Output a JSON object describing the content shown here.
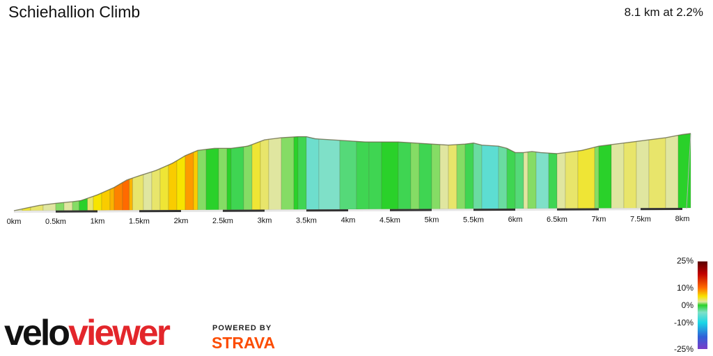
{
  "header": {
    "title": "Schiehallion Climb",
    "summary": "8.1 km at 2.2%"
  },
  "branding": {
    "logo_text": "veloviewer",
    "powered_by": "POWERED BY",
    "strava": "STRAVA",
    "colors": {
      "velo": "#111111",
      "viewer": "#e3262b",
      "strava": "#fc4c02"
    }
  },
  "chart_data": {
    "type": "area",
    "title": "Schiehallion Climb",
    "summary": "8.1 km at 2.2%",
    "x_unit": "km",
    "xlim": [
      0,
      8.1
    ],
    "x_ticks": [
      0,
      0.5,
      1,
      1.5,
      2,
      2.5,
      3,
      3.5,
      4,
      4.5,
      5,
      5.5,
      6,
      6.5,
      7,
      7.5,
      8
    ],
    "x_tick_labels": [
      "0km",
      "0.5km",
      "1km",
      "1.5km",
      "2km",
      "2.5km",
      "3km",
      "3.5km",
      "4km",
      "4.5km",
      "5km",
      "5.5km",
      "6km",
      "6.5km",
      "7km",
      "7.5km",
      "8km"
    ],
    "profile": {
      "x": [
        0,
        0.15,
        0.3,
        0.5,
        0.7,
        0.8,
        1.0,
        1.2,
        1.35,
        1.5,
        1.7,
        1.9,
        2.05,
        2.2,
        2.4,
        2.6,
        2.8,
        3.0,
        3.2,
        3.4,
        3.5,
        3.6,
        3.8,
        4.0,
        4.2,
        4.4,
        4.6,
        4.8,
        5.0,
        5.2,
        5.4,
        5.5,
        5.6,
        5.8,
        5.9,
        6.0,
        6.1,
        6.2,
        6.3,
        6.5,
        6.6,
        6.8,
        7.0,
        7.2,
        7.4,
        7.6,
        7.8,
        8.0,
        8.1
      ],
      "y": [
        0,
        2.5,
        5,
        7,
        8.5,
        9.5,
        15,
        22,
        29,
        33,
        38,
        45,
        52,
        57,
        59,
        59,
        61,
        67,
        69,
        70,
        70,
        68,
        67,
        66,
        65,
        65,
        65,
        64,
        63,
        62,
        63,
        64,
        62,
        61,
        59,
        55,
        55,
        56,
        55,
        54,
        55,
        57,
        61,
        63,
        65,
        67,
        69,
        72,
        73
      ]
    },
    "gradient_segments": [
      {
        "x0": 0.0,
        "x1": 0.1,
        "g": 2
      },
      {
        "x0": 0.1,
        "x1": 0.2,
        "g": 4
      },
      {
        "x0": 0.2,
        "x1": 0.35,
        "g": 3
      },
      {
        "x0": 0.35,
        "x1": 0.5,
        "g": 2
      },
      {
        "x0": 0.5,
        "x1": 0.6,
        "g": 1
      },
      {
        "x0": 0.6,
        "x1": 0.7,
        "g": 2
      },
      {
        "x0": 0.7,
        "x1": 0.78,
        "g": 1
      },
      {
        "x0": 0.78,
        "x1": 0.88,
        "g": 0
      },
      {
        "x0": 0.88,
        "x1": 0.95,
        "g": 3
      },
      {
        "x0": 0.95,
        "x1": 1.05,
        "g": 5
      },
      {
        "x0": 1.05,
        "x1": 1.15,
        "g": 6
      },
      {
        "x0": 1.15,
        "x1": 1.2,
        "g": 7
      },
      {
        "x0": 1.2,
        "x1": 1.3,
        "g": 9
      },
      {
        "x0": 1.3,
        "x1": 1.38,
        "g": 10
      },
      {
        "x0": 1.38,
        "x1": 1.42,
        "g": 7
      },
      {
        "x0": 1.42,
        "x1": 1.55,
        "g": 3
      },
      {
        "x0": 1.55,
        "x1": 1.65,
        "g": 2
      },
      {
        "x0": 1.65,
        "x1": 1.75,
        "g": 3
      },
      {
        "x0": 1.75,
        "x1": 1.85,
        "g": 4
      },
      {
        "x0": 1.85,
        "x1": 1.95,
        "g": 6
      },
      {
        "x0": 1.95,
        "x1": 2.05,
        "g": 5
      },
      {
        "x0": 2.05,
        "x1": 2.15,
        "g": 8
      },
      {
        "x0": 2.15,
        "x1": 2.2,
        "g": 6
      },
      {
        "x0": 2.2,
        "x1": 2.3,
        "g": 1
      },
      {
        "x0": 2.3,
        "x1": 2.45,
        "g": 0
      },
      {
        "x0": 2.45,
        "x1": 2.55,
        "g": 1
      },
      {
        "x0": 2.55,
        "x1": 2.6,
        "g": 0
      },
      {
        "x0": 2.6,
        "x1": 2.75,
        "g": -1
      },
      {
        "x0": 2.75,
        "x1": 2.85,
        "g": 1
      },
      {
        "x0": 2.85,
        "x1": 2.95,
        "g": 4
      },
      {
        "x0": 2.95,
        "x1": 3.05,
        "g": 3
      },
      {
        "x0": 3.05,
        "x1": 3.2,
        "g": 2
      },
      {
        "x0": 3.2,
        "x1": 3.35,
        "g": 1
      },
      {
        "x0": 3.35,
        "x1": 3.4,
        "g": 0
      },
      {
        "x0": 3.4,
        "x1": 3.5,
        "g": -1
      },
      {
        "x0": 3.5,
        "x1": 3.65,
        "g": -5
      },
      {
        "x0": 3.65,
        "x1": 3.9,
        "g": -4
      },
      {
        "x0": 3.9,
        "x1": 4.1,
        "g": -2
      },
      {
        "x0": 4.1,
        "x1": 4.25,
        "g": -1
      },
      {
        "x0": 4.25,
        "x1": 4.4,
        "g": -1
      },
      {
        "x0": 4.4,
        "x1": 4.6,
        "g": 0
      },
      {
        "x0": 4.6,
        "x1": 4.75,
        "g": -1
      },
      {
        "x0": 4.75,
        "x1": 4.85,
        "g": 1
      },
      {
        "x0": 4.85,
        "x1": 5.0,
        "g": -1
      },
      {
        "x0": 5.0,
        "x1": 5.1,
        "g": 1
      },
      {
        "x0": 5.1,
        "x1": 5.2,
        "g": 2
      },
      {
        "x0": 5.2,
        "x1": 5.3,
        "g": 3
      },
      {
        "x0": 5.3,
        "x1": 5.4,
        "g": 1
      },
      {
        "x0": 5.4,
        "x1": 5.5,
        "g": -1
      },
      {
        "x0": 5.5,
        "x1": 5.6,
        "g": -3
      },
      {
        "x0": 5.6,
        "x1": 5.8,
        "g": -6
      },
      {
        "x0": 5.8,
        "x1": 5.9,
        "g": -3
      },
      {
        "x0": 5.9,
        "x1": 6.0,
        "g": -1
      },
      {
        "x0": 6.0,
        "x1": 6.1,
        "g": -2
      },
      {
        "x0": 6.1,
        "x1": 6.15,
        "g": 2
      },
      {
        "x0": 6.15,
        "x1": 6.25,
        "g": 1
      },
      {
        "x0": 6.25,
        "x1": 6.4,
        "g": -4
      },
      {
        "x0": 6.4,
        "x1": 6.5,
        "g": -1
      },
      {
        "x0": 6.5,
        "x1": 6.6,
        "g": 2
      },
      {
        "x0": 6.6,
        "x1": 6.75,
        "g": 3
      },
      {
        "x0": 6.75,
        "x1": 6.95,
        "g": 4
      },
      {
        "x0": 6.95,
        "x1": 7.0,
        "g": 1
      },
      {
        "x0": 7.0,
        "x1": 7.15,
        "g": 0
      },
      {
        "x0": 7.15,
        "x1": 7.3,
        "g": 2
      },
      {
        "x0": 7.3,
        "x1": 7.45,
        "g": 3
      },
      {
        "x0": 7.45,
        "x1": 7.6,
        "g": 2
      },
      {
        "x0": 7.6,
        "x1": 7.8,
        "g": 3
      },
      {
        "x0": 7.8,
        "x1": 7.95,
        "g": 2
      },
      {
        "x0": 7.95,
        "x1": 8.1,
        "g": 0
      }
    ],
    "legend": {
      "type": "gradient-scale",
      "placement": "bottom-right",
      "range": [
        -25,
        25
      ],
      "labels": [
        {
          "value": 25,
          "text": "25%"
        },
        {
          "value": 10,
          "text": "10%"
        },
        {
          "value": 0,
          "text": "0%"
        },
        {
          "value": -10,
          "text": "-10%"
        },
        {
          "value": -25,
          "text": "-25%"
        }
      ],
      "color_stops": [
        {
          "value": 25,
          "color": "#5a0000"
        },
        {
          "value": 18,
          "color": "#c00000"
        },
        {
          "value": 10,
          "color": "#ff6a00"
        },
        {
          "value": 5,
          "color": "#f7e400"
        },
        {
          "value": 2,
          "color": "#e0e6a0"
        },
        {
          "value": 0,
          "color": "#2ad12a"
        },
        {
          "value": -4,
          "color": "#7fe0c8"
        },
        {
          "value": -10,
          "color": "#19d6e6"
        },
        {
          "value": -18,
          "color": "#3060d8"
        },
        {
          "value": -25,
          "color": "#7a3cc8"
        }
      ]
    }
  }
}
